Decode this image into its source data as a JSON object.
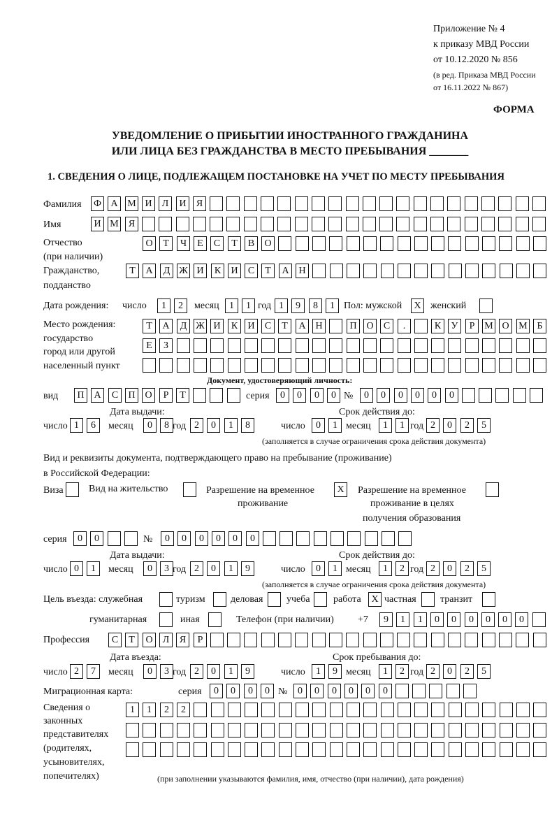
{
  "header": {
    "appendix": "Приложение № 4",
    "order": "к приказу МВД России",
    "order_date": "от 10.12.2020 № 856",
    "edition": "(в ред. Приказа МВД России",
    "edition_date": "от 16.11.2022 № 867)",
    "form_label": "ФОРМА",
    "title_line1": "УВЕДОМЛЕНИЕ О ПРИБЫТИИ ИНОСТРАННОГО ГРАЖДАНИНА",
    "title_line2": "ИЛИ ЛИЦА БЕЗ ГРАЖДАНСТВА В МЕСТО ПРЕБЫВАНИЯ _______",
    "section1": "1. СВЕДЕНИЯ О ЛИЦЕ, ПОДЛЕЖАЩЕМ ПОСТАНОВКЕ НА УЧЕТ ПО МЕСТУ ПРЕБЫВАНИЯ"
  },
  "labels": {
    "surname": "Фамилия",
    "name": "Имя",
    "patronymic": "Отчество",
    "patronymic_note": "(при наличии)",
    "citizenship": "Гражданство,",
    "citizenship2": "подданство",
    "birth_date": "Дата рождения:",
    "day": "число",
    "month": "месяц",
    "year": "год",
    "sex_male": "Пол: мужской",
    "sex_female": "женский",
    "birth_place": "Место рождения:",
    "birth_place2": "государство",
    "birth_place3": "город или другой",
    "birth_place4": "населенный пункт",
    "id_doc": "Документ, удостоверяющий личность:",
    "doc_type": "вид",
    "series": "серия",
    "number": "№",
    "issue_date": "Дата выдачи:",
    "valid_until": "Срок действия до:",
    "valid_note": "(заполняется в случае ограничения срока действия документа)",
    "stay_doc1": "Вид и реквизиты документа, подтверждающего право на пребывание (проживание)",
    "stay_doc2": "в Российской Федерации:",
    "visa": "Виза",
    "residence": "Вид на жительство",
    "trp1": "Разрешение на временное",
    "trp2": "проживание",
    "trpe1": "Разрешение на временное",
    "trpe2": "проживание в целях",
    "trpe3": "получения образования",
    "purpose": "Цель въезда: служебная",
    "tourism": "туризм",
    "business": "деловая",
    "study": "учеба",
    "work": "работа",
    "private": "частная",
    "transit": "транзит",
    "humanitarian": "гуманитарная",
    "other": "иная",
    "phone": "Телефон (при наличии)",
    "phone_prefix": "+7",
    "profession": "Профессия",
    "entry_date": "Дата въезда:",
    "stay_until": "Срок пребывания до:",
    "migration_card": "Миграционная карта:",
    "reps1": "Сведения о",
    "reps2": "законных",
    "reps3": "представителях",
    "reps4": "(родителях,",
    "reps5": "усыновителях,",
    "reps6": "попечителях)",
    "reps_note": "(при заполнении указываются фамилия, имя, отчество (при наличии), дата рождения)"
  },
  "form": {
    "surname": "ФАМИЛИЯ",
    "name": "ИМЯ",
    "patronymic": "ОТЧЕСТВО",
    "citizenship": "ТАДЖИКИСТАН",
    "birth_day": "12",
    "birth_month": "11",
    "birth_year": "1981",
    "sex_male": "X",
    "sex_female": "",
    "birth_place_1": "ТАДЖИКИСТАН ПОС. КУРМОМБ",
    "birth_place_2": "ЕЗ",
    "birth_place_3": "",
    "doc_type": "ПАСПОРТ",
    "doc_series": "0000",
    "doc_number": "000000",
    "doc_issue_day": "16",
    "doc_issue_month": "08",
    "doc_issue_year": "2018",
    "doc_valid_day": "01",
    "doc_valid_month": "11",
    "doc_valid_year": "2025",
    "visa": "",
    "residence": "",
    "trp": "X",
    "trpe": "",
    "stay_series": "00",
    "stay_number": "000000",
    "stay_issue_day": "01",
    "stay_issue_month": "03",
    "stay_issue_year": "2019",
    "stay_valid_day": "01",
    "stay_valid_month": "12",
    "stay_valid_year": "2025",
    "purpose_service": "",
    "purpose_tourism": "",
    "purpose_business": "",
    "purpose_study": "",
    "purpose_work": "X",
    "purpose_private": "",
    "purpose_transit": "",
    "purpose_humanitarian": "",
    "purpose_other": "",
    "phone": "911000000",
    "profession": "СТОЛЯР",
    "entry_day": "27",
    "entry_month": "03",
    "entry_year": "2019",
    "stay_until_day": "19",
    "stay_until_month": "12",
    "stay_until_year": "2025",
    "mig_series": "0000",
    "mig_number": "000000",
    "reps_1": "1122",
    "reps_2": "",
    "reps_3": ""
  }
}
